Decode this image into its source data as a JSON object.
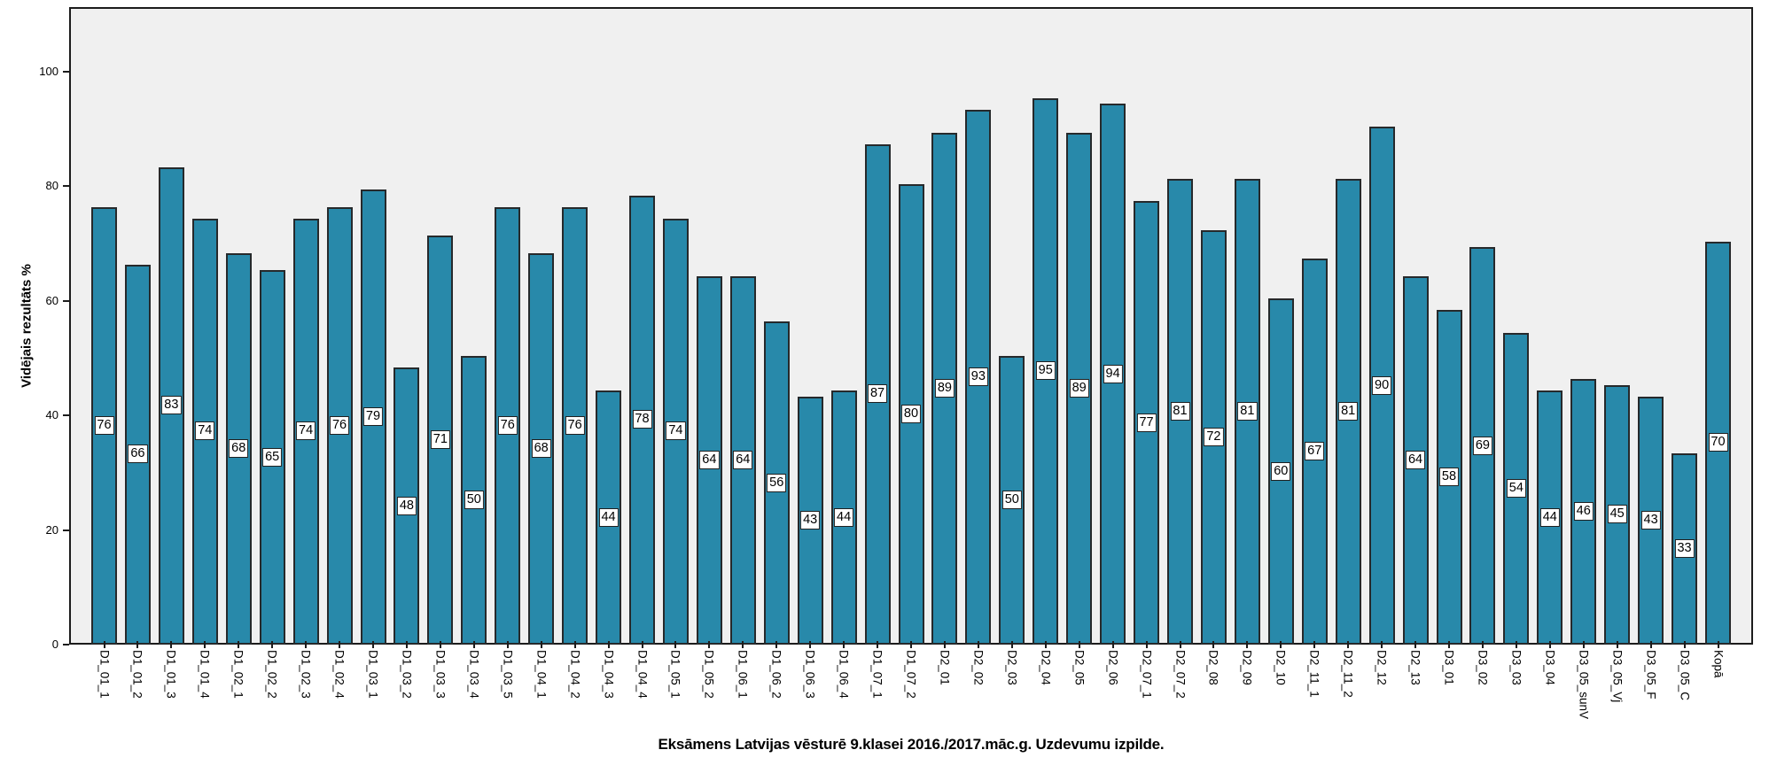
{
  "chart_data": {
    "type": "bar",
    "title": "Eksāmens Latvijas vēsturē 9.klasei 2016./2017.māc.g. Uzdevumu izpilde.",
    "ylabel": "Vidējais rezultāts %",
    "xlabel": "",
    "categories": [
      "D1_01_1",
      "D1_01_2",
      "D1_01_3",
      "D1_01_4",
      "D1_02_1",
      "D1_02_2",
      "D1_02_3",
      "D1_02_4",
      "D1_03_1",
      "D1_03_2",
      "D1_03_3",
      "D1_03_4",
      "D1_03_5",
      "D1_04_1",
      "D1_04_2",
      "D1_04_3",
      "D1_04_4",
      "D1_05_1",
      "D1_05_2",
      "D1_06_1",
      "D1_06_2",
      "D1_06_3",
      "D1_06_4",
      "D1_07_1",
      "D1_07_2",
      "D2_01",
      "D2_02",
      "D2_03",
      "D2_04",
      "D2_05",
      "D2_06",
      "D2_07_1",
      "D2_07_2",
      "D2_08",
      "D2_09",
      "D2_10",
      "D2_11_1",
      "D2_11_2",
      "D2_12",
      "D2_13",
      "D3_01",
      "D3_02",
      "D3_03",
      "D3_04",
      "D3_05_sunV",
      "D3_05_Vj",
      "D3_05_F",
      "D3_05_C",
      "Kopā"
    ],
    "values": [
      76,
      66,
      83,
      74,
      68,
      65,
      74,
      76,
      79,
      48,
      71,
      50,
      76,
      68,
      76,
      44,
      78,
      74,
      64,
      64,
      56,
      43,
      44,
      87,
      80,
      89,
      93,
      50,
      95,
      89,
      94,
      77,
      81,
      72,
      81,
      60,
      67,
      81,
      90,
      64,
      58,
      69,
      54,
      44,
      46,
      45,
      43,
      33,
      70
    ],
    "value_labels_shown": true,
    "yticks": [
      0,
      20,
      40,
      60,
      80,
      100
    ],
    "ylim": [
      0,
      111
    ],
    "grid": "off",
    "legend": "none",
    "bar_color": "#2889aa",
    "bar_border_color": "#26292b",
    "plot_background": "#f0f0f0",
    "value_label_box": {
      "background": "#ffffff",
      "border": "#1f1f1f"
    }
  }
}
